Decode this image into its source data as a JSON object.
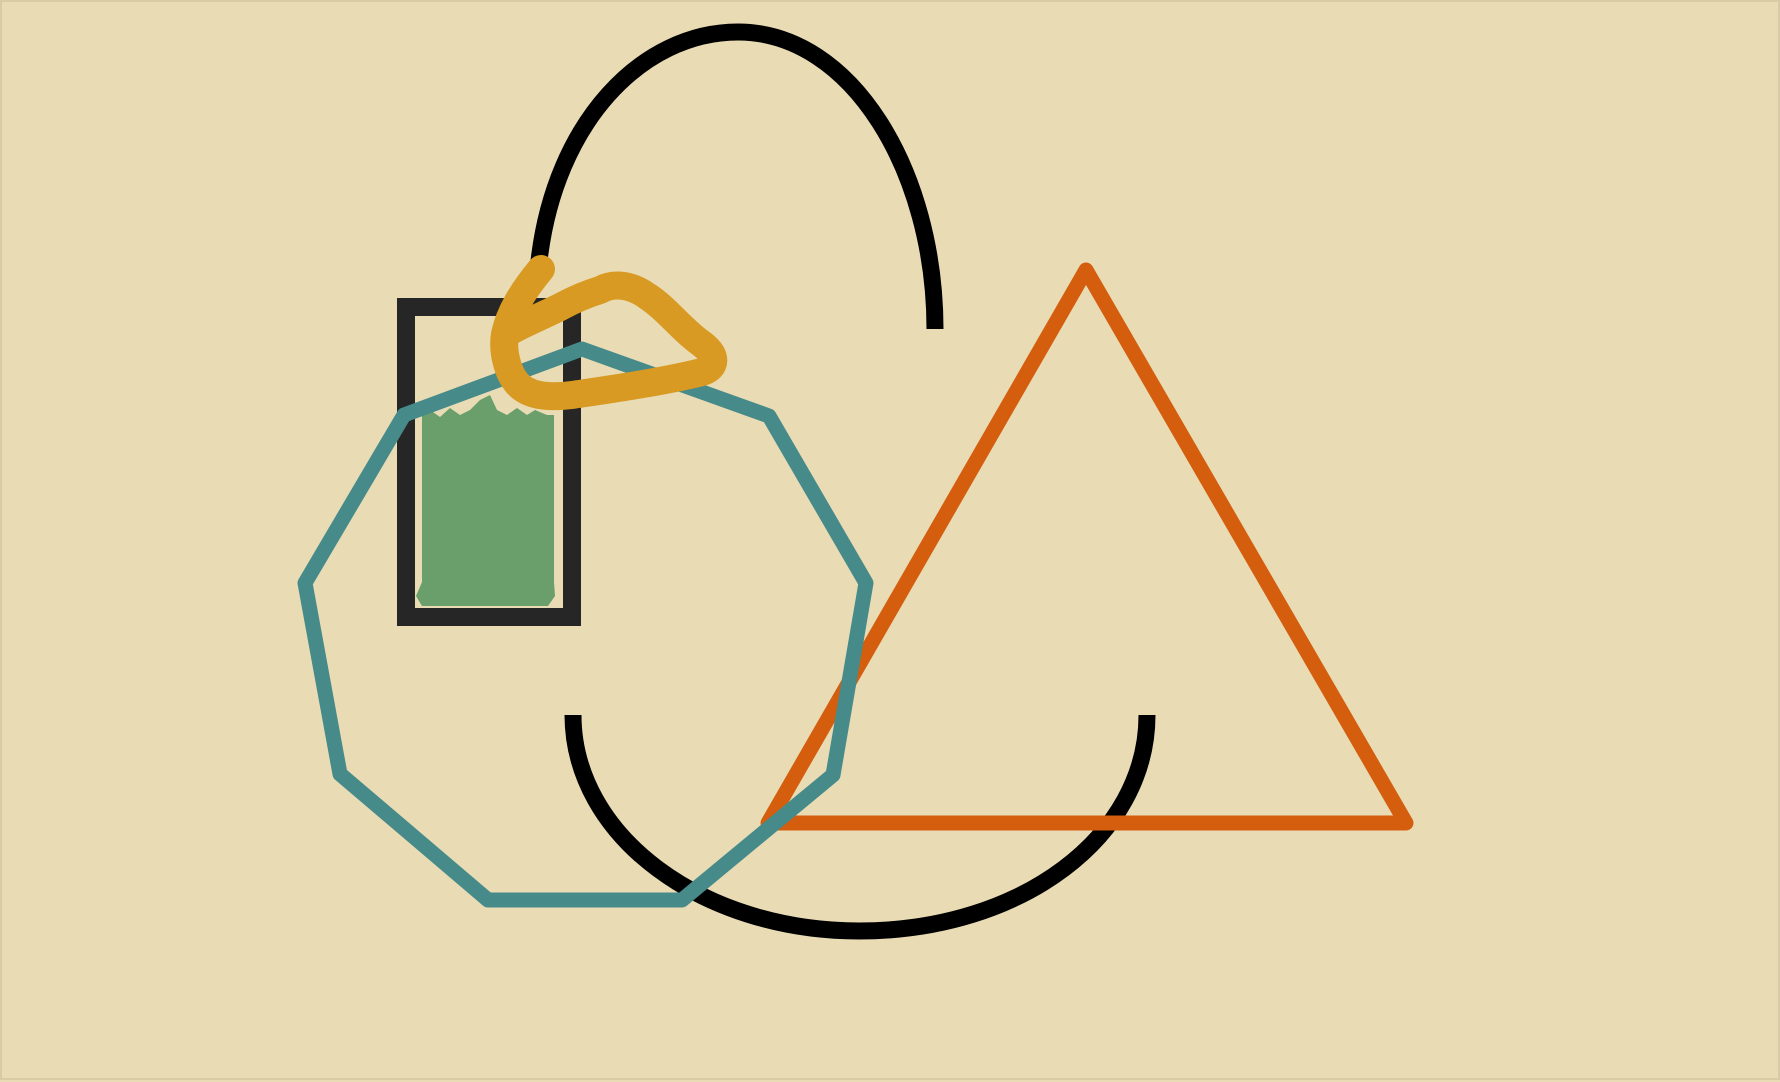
{
  "canvas": {
    "background": "#e9dcb5",
    "border": "#d8cba6"
  },
  "shapes": {
    "top_arc": {
      "kind": "arc",
      "stroke": "#000000"
    },
    "bottom_arc": {
      "kind": "arc",
      "stroke": "#000000"
    },
    "triangle": {
      "kind": "triangle",
      "stroke": "#d45d0e"
    },
    "rectangle": {
      "kind": "rectangle",
      "stroke": "#262626"
    },
    "green_scribble": {
      "kind": "filled-scribble",
      "fill": "#6a9e6a"
    },
    "nonagon": {
      "kind": "polygon",
      "stroke": "#478a8a"
    },
    "yellow_scribble": {
      "kind": "freehand-stroke",
      "stroke": "#d89a22"
    }
  }
}
